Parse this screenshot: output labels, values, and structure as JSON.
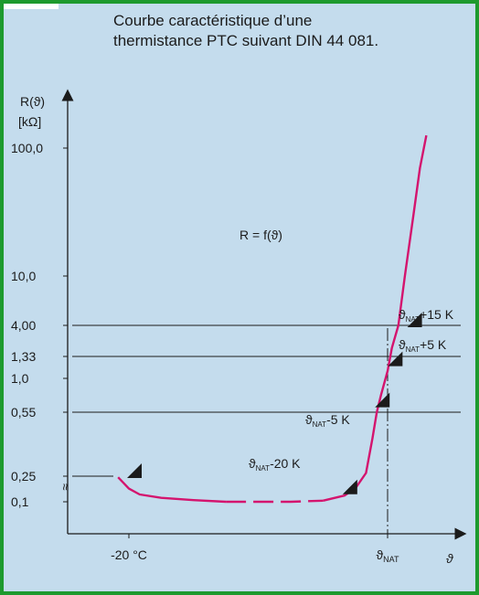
{
  "chart_data": {
    "type": "line",
    "title": [
      "Courbe caractéristique d’une",
      "thermistance PTC suivant DIN 44 081."
    ],
    "ylabel": [
      "R(ϑ)",
      "[kΩ]"
    ],
    "xlabel": "ϑ",
    "y_scale": "log",
    "ylim": [
      0.03,
      300
    ],
    "yticks": [
      {
        "label": "100,0",
        "value": 100
      },
      {
        "label": "10,0",
        "value": 10
      },
      {
        "label": "4,00",
        "value": 4
      },
      {
        "label": "1,33",
        "value": 1.33
      },
      {
        "label": "1,0",
        "value": 1
      },
      {
        "label": "0,55",
        "value": 0.55
      },
      {
        "label": "0,25",
        "value": 0.25
      },
      {
        "label": "0,1",
        "value": 0.1
      }
    ],
    "xticks": [
      {
        "label": "-20 °C",
        "value": -20
      },
      {
        "label": "ϑNAT",
        "value": 100
      }
    ],
    "formula": "R = f(ϑ)",
    "axis_break_symbol": "≈",
    "curve_note": "curve dashed between about 25 and 70 °C (values not shown)",
    "series": [
      {
        "color": "#d4146e",
        "points": [
          {
            "x": -25,
            "y": 0.24
          },
          {
            "x": -20,
            "y": 0.16
          },
          {
            "x": -15,
            "y": 0.13
          },
          {
            "x": -5,
            "y": 0.115
          },
          {
            "x": 10,
            "y": 0.106
          },
          {
            "x": 25,
            "y": 0.1
          },
          {
            "x": 35,
            "y": 0.1
          },
          {
            "x": 55,
            "y": 0.1
          },
          {
            "x": 70,
            "y": 0.104
          },
          {
            "x": 80,
            "y": 0.125
          },
          {
            "x": 85,
            "y": 0.16
          },
          {
            "x": 90,
            "y": 0.26
          },
          {
            "x": 93,
            "y": 0.4
          },
          {
            "x": 95,
            "y": 0.55
          },
          {
            "x": 97,
            "y": 0.75
          },
          {
            "x": 100,
            "y": 1.1
          },
          {
            "x": 102,
            "y": 1.8
          },
          {
            "x": 105,
            "y": 4
          },
          {
            "x": 108,
            "y": 10
          },
          {
            "x": 112,
            "y": 30
          },
          {
            "x": 115,
            "y": 70
          },
          {
            "x": 118,
            "y": 130
          }
        ]
      }
    ],
    "annotations": [
      {
        "sub": "NAT",
        "rest": "+15 K",
        "x": 115,
        "y": 4
      },
      {
        "sub": "NAT",
        "rest": "+5 K",
        "x": 105,
        "y": 1.33
      },
      {
        "sub": "NAT",
        "rest": "-5 K",
        "x": 95,
        "y": 0.55
      },
      {
        "sub": "NAT",
        "rest": "-20 K",
        "x": 80,
        "y": 0.16
      }
    ],
    "corner_markers": [
      {
        "x": -20,
        "y": 0.25
      },
      {
        "x": 80,
        "y": 0.14
      },
      {
        "x": 95,
        "y": 0.62
      },
      {
        "x": 101,
        "y": 1.2
      },
      {
        "x": 110,
        "y": 4
      }
    ],
    "reference_lines": {
      "horizontal_at": [
        4,
        1.33,
        0.55,
        0.25
      ],
      "vertical_at": 100
    }
  }
}
